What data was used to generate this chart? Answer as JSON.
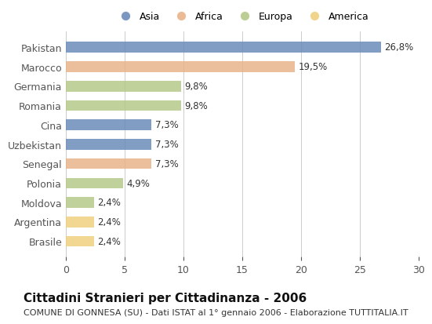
{
  "countries": [
    "Pakistan",
    "Marocco",
    "Germania",
    "Romania",
    "Cina",
    "Uzbekistan",
    "Senegal",
    "Polonia",
    "Moldova",
    "Argentina",
    "Brasile"
  ],
  "values": [
    26.8,
    19.5,
    9.8,
    9.8,
    7.3,
    7.3,
    7.3,
    4.9,
    2.4,
    2.4,
    2.4
  ],
  "labels": [
    "26,8%",
    "19,5%",
    "9,8%",
    "9,8%",
    "7,3%",
    "7,3%",
    "7,3%",
    "4,9%",
    "2,4%",
    "2,4%",
    "2,4%"
  ],
  "continents": [
    "Asia",
    "Africa",
    "Europa",
    "Europa",
    "Asia",
    "Asia",
    "Africa",
    "Europa",
    "Europa",
    "America",
    "America"
  ],
  "colors": {
    "Asia": "#6b8cba",
    "Africa": "#e8b48a",
    "Europa": "#b5c98a",
    "America": "#f0d080"
  },
  "legend_order": [
    "Asia",
    "Africa",
    "Europa",
    "America"
  ],
  "xlim": [
    0,
    30
  ],
  "xticks": [
    0,
    5,
    10,
    15,
    20,
    25,
    30
  ],
  "title": "Cittadini Stranieri per Cittadinanza - 2006",
  "subtitle": "COMUNE DI GONNESA (SU) - Dati ISTAT al 1° gennaio 2006 - Elaborazione TUTTITALIA.IT",
  "background_color": "#ffffff",
  "bar_height": 0.55,
  "label_fontsize": 8.5,
  "title_fontsize": 11,
  "subtitle_fontsize": 8,
  "ytick_fontsize": 9,
  "xtick_fontsize": 9,
  "legend_fontsize": 9
}
